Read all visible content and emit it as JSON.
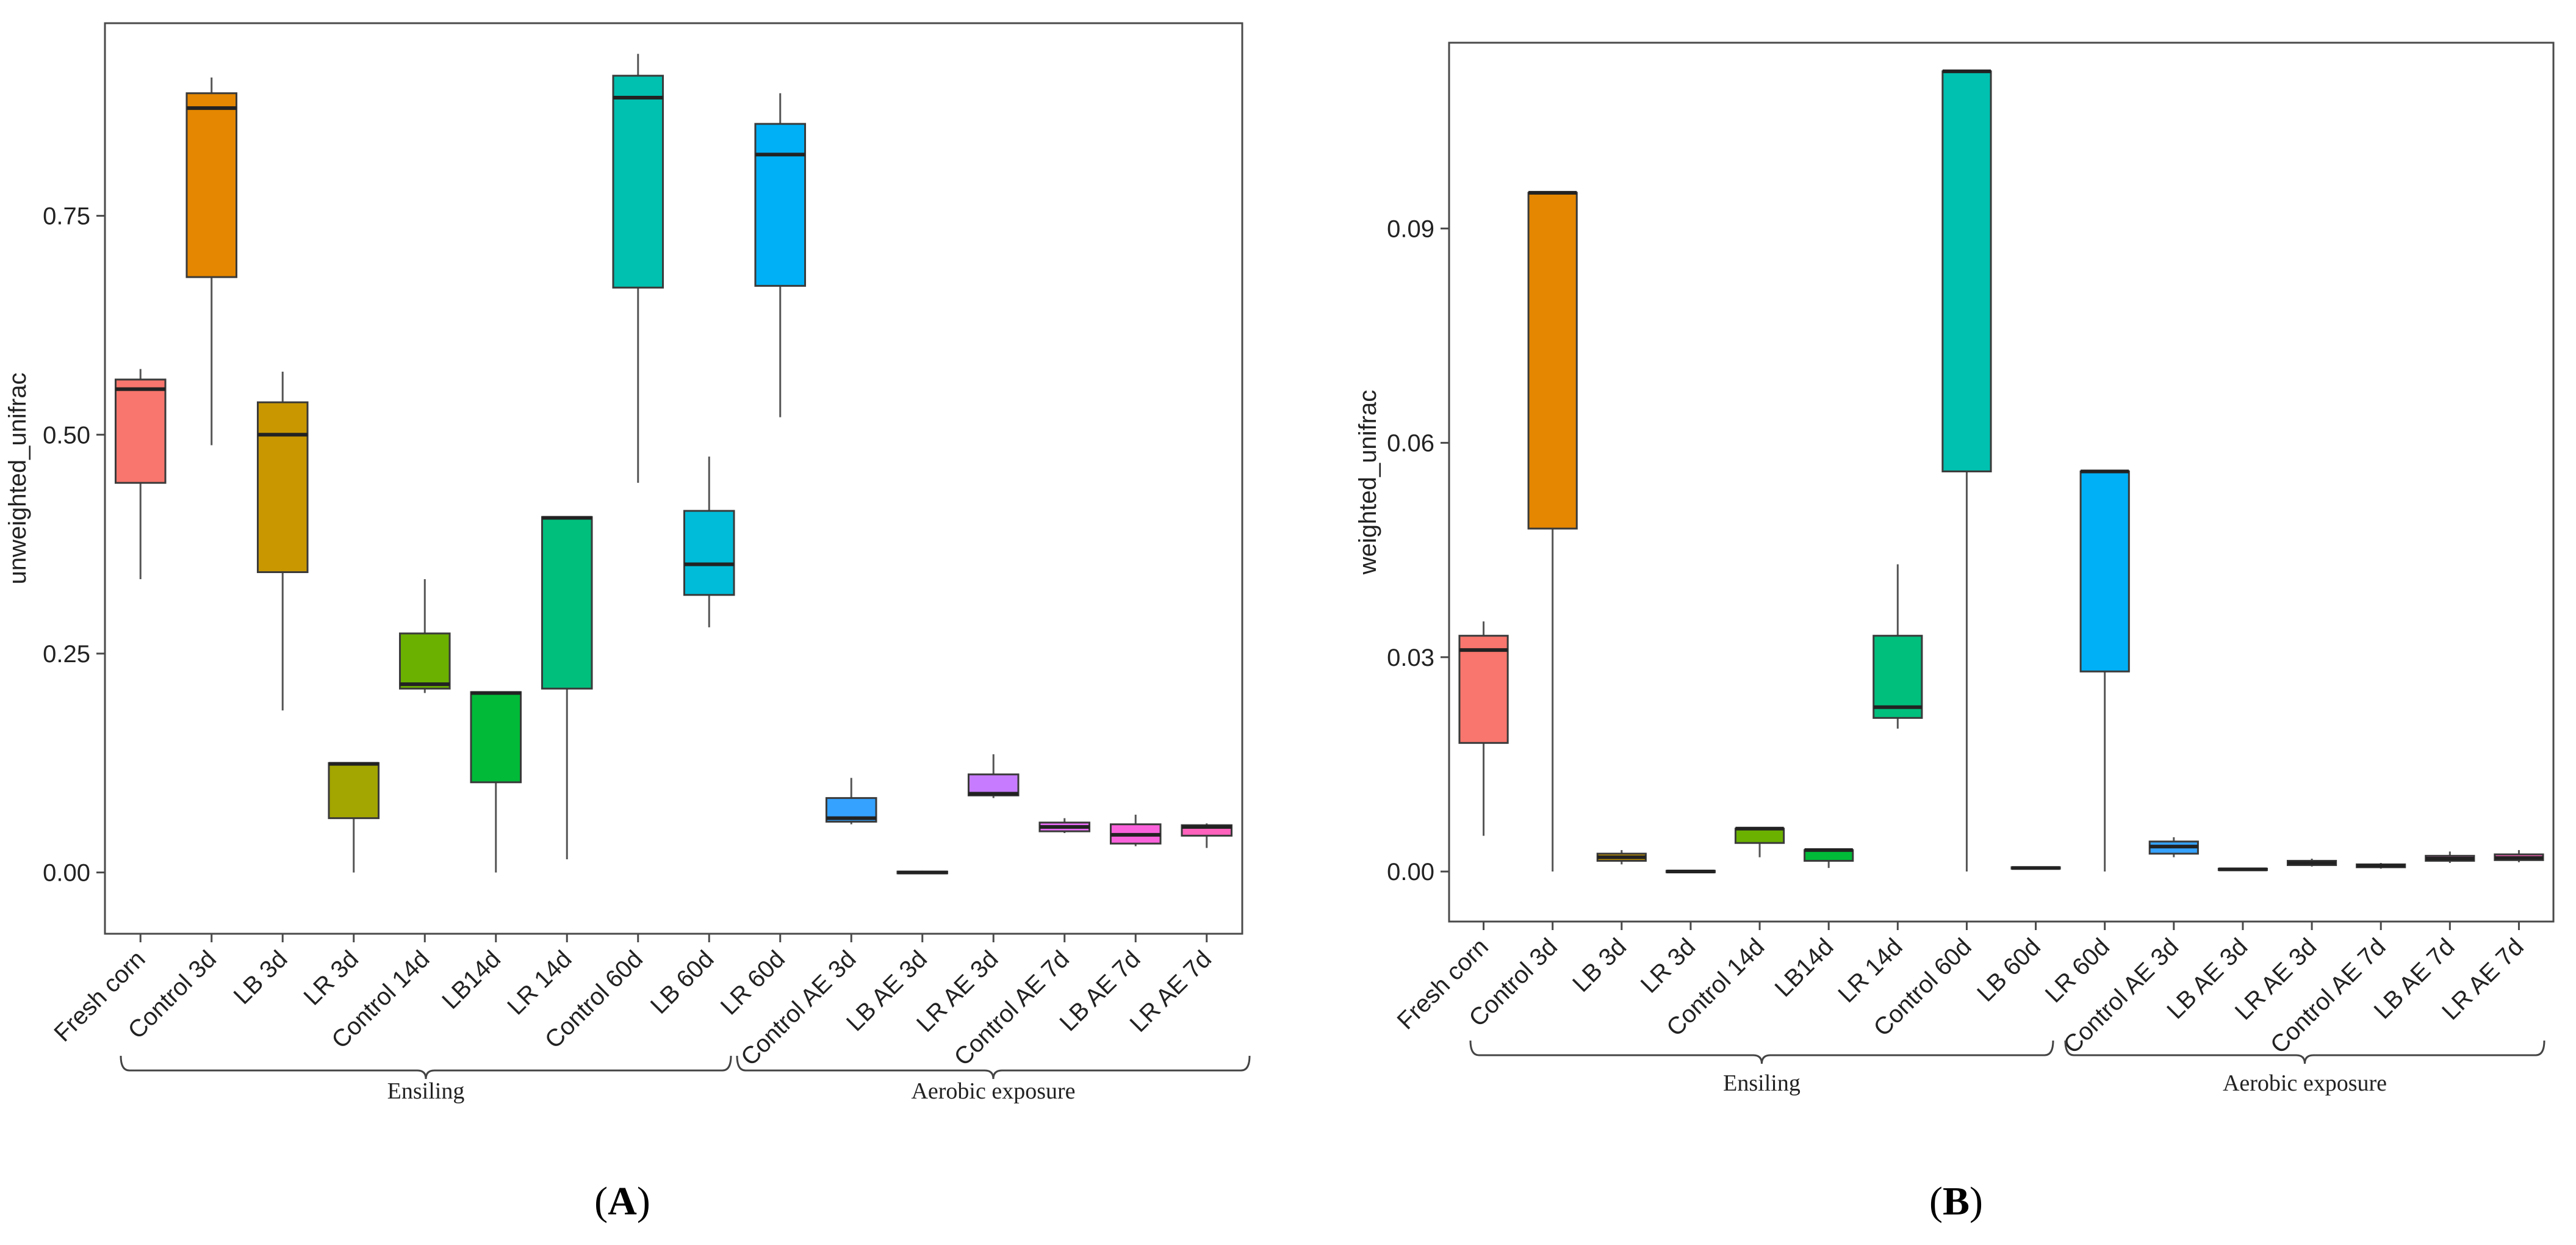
{
  "chart_data": [
    {
      "type": "box",
      "panel_label": "(A)",
      "panel_letter": "A",
      "ylabel": "unweighted_unifrac",
      "xlabel": "",
      "ylim": [
        -0.07,
        0.97
      ],
      "yticks": [
        "0.00",
        "0.25",
        "0.50",
        "0.75"
      ],
      "ytick_values": [
        0.0,
        0.25,
        0.5,
        0.75
      ],
      "grid": false,
      "groups": [
        {
          "label": "Ensiling",
          "from": 0,
          "to": 8
        },
        {
          "label": "Aerobic exposure",
          "from": 9,
          "to": 14
        }
      ],
      "boxes": [
        {
          "label": "Fresh corn",
          "color": "#F8766D",
          "min": 0.335,
          "q1": 0.445,
          "median": 0.552,
          "q3": 0.563,
          "max": 0.575
        },
        {
          "label": "Control 3d",
          "color": "#E58700",
          "min": 0.488,
          "q1": 0.68,
          "median": 0.873,
          "q3": 0.89,
          "max": 0.908
        },
        {
          "label": "LB 3d",
          "color": "#C99800",
          "min": 0.185,
          "q1": 0.343,
          "median": 0.5,
          "q3": 0.537,
          "max": 0.572
        },
        {
          "label": "LR 3d",
          "color": "#A3A500",
          "min": 0.0,
          "q1": 0.062,
          "median": 0.124,
          "q3": 0.125,
          "max": 0.125
        },
        {
          "label": "Control 14d",
          "color": "#6BB100",
          "min": 0.205,
          "q1": 0.21,
          "median": 0.215,
          "q3": 0.273,
          "max": 0.335
        },
        {
          "label": "LB14d",
          "color": "#00BA38",
          "min": 0.0,
          "q1": 0.103,
          "median": 0.205,
          "q3": 0.206,
          "max": 0.206
        },
        {
          "label": "LR 14d",
          "color": "#00BF7D",
          "min": 0.015,
          "q1": 0.21,
          "median": 0.405,
          "q3": 0.406,
          "max": 0.406
        },
        {
          "label": "Control 60d",
          "color": "#00C0AF",
          "min": 0.445,
          "q1": 0.668,
          "median": 0.885,
          "q3": 0.91,
          "max": 0.935
        },
        {
          "label": "LB 60d",
          "color": "#00BCD8",
          "min": 0.28,
          "q1": 0.317,
          "median": 0.352,
          "q3": 0.413,
          "max": 0.475
        },
        {
          "label": "LR 60d",
          "color": "#00B0F6",
          "min": 0.52,
          "q1": 0.67,
          "median": 0.82,
          "q3": 0.855,
          "max": 0.89
        },
        {
          "label": "Control AE 3d",
          "color": "#35A2FF",
          "min": 0.055,
          "q1": 0.058,
          "median": 0.062,
          "q3": 0.085,
          "max": 0.108
        },
        {
          "label": "LB AE 3d",
          "color": "#9590FF",
          "min": -0.002,
          "q1": -0.001,
          "median": 0.0,
          "q3": 0.001,
          "max": 0.002
        },
        {
          "label": "LR AE 3d",
          "color": "#C77CFF",
          "min": 0.085,
          "q1": 0.088,
          "median": 0.09,
          "q3": 0.112,
          "max": 0.135
        },
        {
          "label": "Control AE 7d",
          "color": "#E76BF3",
          "min": 0.045,
          "q1": 0.047,
          "median": 0.052,
          "q3": 0.057,
          "max": 0.062
        },
        {
          "label": "LB AE 7d",
          "color": "#FA62DB",
          "min": 0.03,
          "q1": 0.033,
          "median": 0.043,
          "q3": 0.055,
          "max": 0.066
        },
        {
          "label": "LR AE 7d",
          "color": "#FF62BC",
          "min": 0.028,
          "q1": 0.042,
          "median": 0.052,
          "q3": 0.054,
          "max": 0.056
        }
      ]
    },
    {
      "type": "box",
      "panel_label": "(B)",
      "panel_letter": "B",
      "ylabel": "weighted_unifrac",
      "xlabel": "",
      "ylim": [
        -0.007,
        0.116
      ],
      "yticks": [
        "0.00",
        "0.03",
        "0.06",
        "0.09"
      ],
      "ytick_values": [
        0.0,
        0.03,
        0.06,
        0.09
      ],
      "grid": false,
      "groups": [
        {
          "label": "Ensiling",
          "from": 0,
          "to": 8
        },
        {
          "label": "Aerobic exposure",
          "from": 9,
          "to": 14
        }
      ],
      "boxes": [
        {
          "label": "Fresh corn",
          "color": "#F8766D",
          "min": 0.005,
          "q1": 0.018,
          "median": 0.031,
          "q3": 0.033,
          "max": 0.035
        },
        {
          "label": "Control 3d",
          "color": "#E58700",
          "min": 0.0,
          "q1": 0.048,
          "median": 0.095,
          "q3": 0.095,
          "max": 0.095
        },
        {
          "label": "LB 3d",
          "color": "#C99800",
          "min": 0.001,
          "q1": 0.0015,
          "median": 0.002,
          "q3": 0.0025,
          "max": 0.003
        },
        {
          "label": "LR 3d",
          "color": "#A3A500",
          "min": -0.0002,
          "q1": -0.0001,
          "median": 0.0,
          "q3": 0.0001,
          "max": 0.0002
        },
        {
          "label": "Control 14d",
          "color": "#6BB100",
          "min": 0.002,
          "q1": 0.004,
          "median": 0.006,
          "q3": 0.006,
          "max": 0.006
        },
        {
          "label": "LB14d",
          "color": "#00BA38",
          "min": 0.0005,
          "q1": 0.0015,
          "median": 0.003,
          "q3": 0.003,
          "max": 0.003
        },
        {
          "label": "LR 14d",
          "color": "#00BF7D",
          "min": 0.02,
          "q1": 0.0215,
          "median": 0.023,
          "q3": 0.033,
          "max": 0.043
        },
        {
          "label": "Control 60d",
          "color": "#00C0AF",
          "min": 0.0,
          "q1": 0.056,
          "median": 0.112,
          "q3": 0.112,
          "max": 0.112
        },
        {
          "label": "LB 60d",
          "color": "#00BCD8",
          "min": 0.0003,
          "q1": 0.0004,
          "median": 0.0005,
          "q3": 0.0006,
          "max": 0.0007
        },
        {
          "label": "LR 60d",
          "color": "#00B0F6",
          "min": 0.0,
          "q1": 0.028,
          "median": 0.056,
          "q3": 0.056,
          "max": 0.056
        },
        {
          "label": "Control AE 3d",
          "color": "#35A2FF",
          "min": 0.002,
          "q1": 0.0025,
          "median": 0.0035,
          "q3": 0.0042,
          "max": 0.0048
        },
        {
          "label": "LB AE 3d",
          "color": "#9590FF",
          "min": 0.0001,
          "q1": 0.0002,
          "median": 0.0003,
          "q3": 0.0004,
          "max": 0.0005
        },
        {
          "label": "LR AE 3d",
          "color": "#C77CFF",
          "min": 0.0007,
          "q1": 0.0009,
          "median": 0.0012,
          "q3": 0.0015,
          "max": 0.0018
        },
        {
          "label": "Control AE 7d",
          "color": "#E76BF3",
          "min": 0.0004,
          "q1": 0.0006,
          "median": 0.0008,
          "q3": 0.001,
          "max": 0.0012
        },
        {
          "label": "LB AE 7d",
          "color": "#FA62DB",
          "min": 0.0012,
          "q1": 0.0015,
          "median": 0.0018,
          "q3": 0.0022,
          "max": 0.0028
        },
        {
          "label": "LR AE 7d",
          "color": "#FF62BC",
          "min": 0.0013,
          "q1": 0.0016,
          "median": 0.0019,
          "q3": 0.0024,
          "max": 0.003
        }
      ]
    }
  ]
}
